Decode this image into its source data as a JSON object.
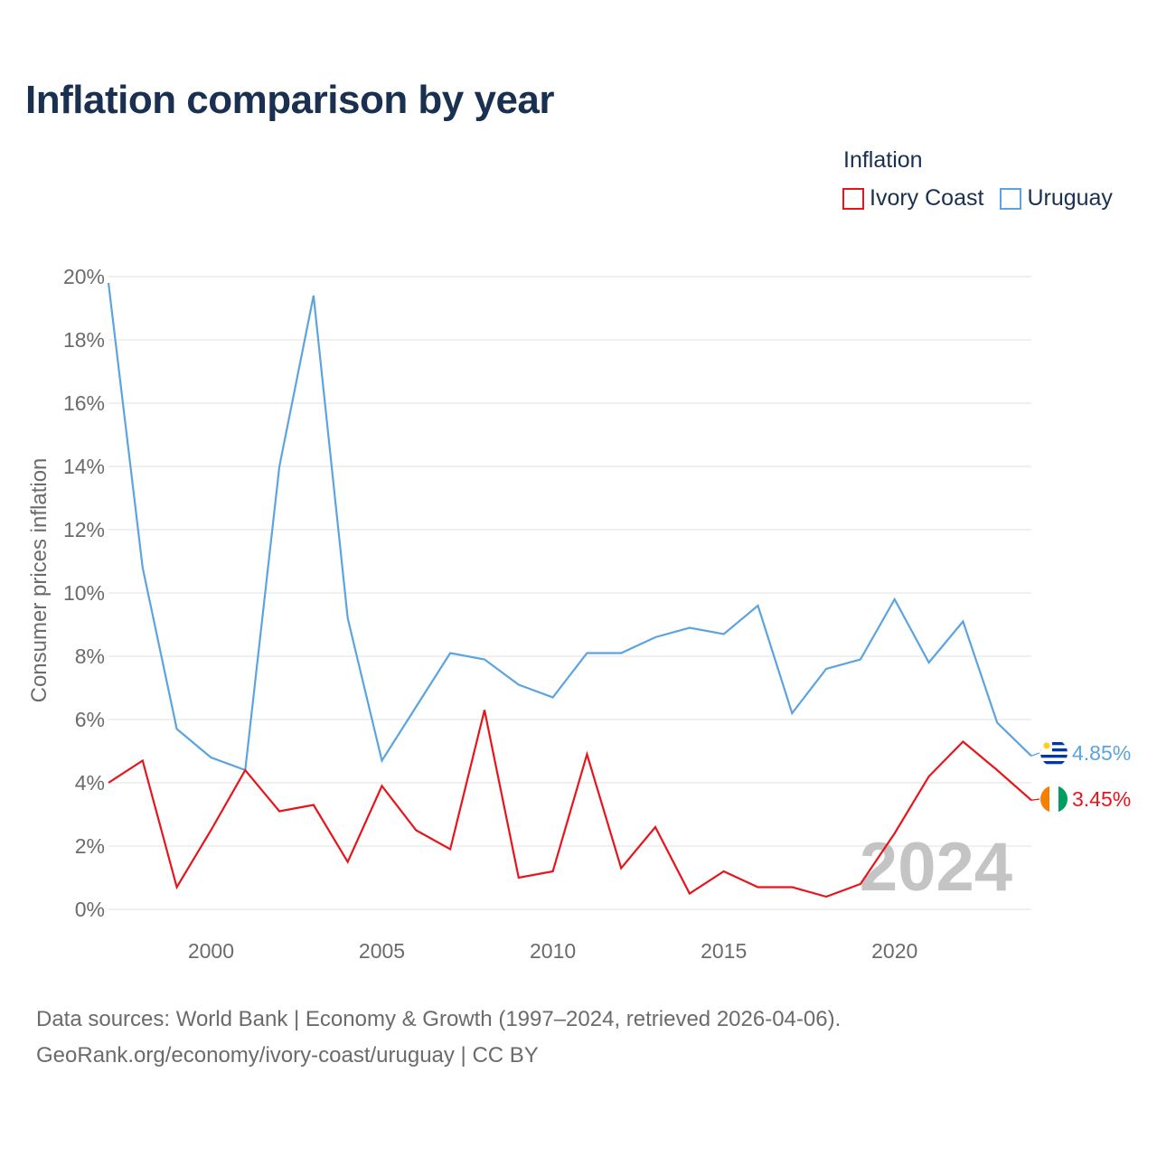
{
  "title": "Inflation comparison by year",
  "legend": {
    "title": "Inflation",
    "items": [
      {
        "name": "Ivory Coast",
        "color": "#e8141c"
      },
      {
        "name": "Uruguay",
        "color": "#5ba4e0"
      }
    ]
  },
  "watermark_year": "2024",
  "source": {
    "line1": "Data sources: World Bank | Economy & Growth (1997–2024, retrieved 2026-04-06).",
    "line2": "GeoRank.org/economy/ivory-coast/uruguay | CC BY"
  },
  "chart_data": {
    "type": "line",
    "ylabel": "Consumer prices inflation",
    "xlabel": "",
    "ylim": [
      0,
      20
    ],
    "xlim": [
      1997,
      2024
    ],
    "yticks": [
      0,
      2,
      4,
      6,
      8,
      10,
      12,
      14,
      16,
      18,
      20
    ],
    "ytick_labels": [
      "0%",
      "2%",
      "4%",
      "6%",
      "8%",
      "10%",
      "12%",
      "14%",
      "16%",
      "18%",
      "20%"
    ],
    "xticks": [
      2000,
      2005,
      2010,
      2015,
      2020
    ],
    "xtick_labels": [
      "2000",
      "2005",
      "2010",
      "2015",
      "2020"
    ],
    "x": [
      1997,
      1998,
      1999,
      2000,
      2001,
      2002,
      2003,
      2004,
      2005,
      2006,
      2007,
      2008,
      2009,
      2010,
      2011,
      2012,
      2013,
      2014,
      2015,
      2016,
      2017,
      2018,
      2019,
      2020,
      2021,
      2022,
      2023,
      2024
    ],
    "series": [
      {
        "name": "Uruguay",
        "color": "#5ba4e0",
        "end_label": "4.85%",
        "values": [
          19.8,
          10.8,
          5.7,
          4.8,
          4.4,
          14.0,
          19.4,
          9.2,
          4.7,
          6.4,
          8.1,
          7.9,
          7.1,
          6.7,
          8.1,
          8.1,
          8.6,
          8.9,
          8.7,
          9.6,
          6.2,
          7.6,
          7.9,
          9.8,
          7.8,
          9.1,
          5.9,
          4.85
        ]
      },
      {
        "name": "Ivory Coast",
        "color": "#e8141c",
        "end_label": "3.45%",
        "values": [
          4.0,
          4.7,
          0.7,
          2.5,
          4.4,
          3.1,
          3.3,
          1.5,
          3.9,
          2.5,
          1.9,
          6.3,
          1.0,
          1.2,
          4.9,
          1.3,
          2.6,
          0.5,
          1.2,
          0.7,
          0.7,
          0.4,
          0.8,
          2.4,
          4.2,
          5.3,
          4.4,
          3.45
        ]
      }
    ]
  }
}
